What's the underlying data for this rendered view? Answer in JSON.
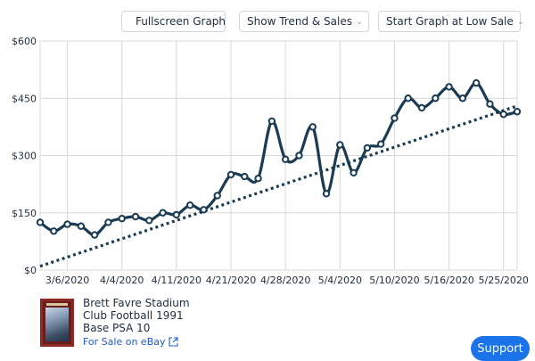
{
  "toolbar": {
    "fullscreen_label": "Fullscreen Graph",
    "trend_label": "Show Trend & Sales",
    "start_label": "Start Graph at Low Sale"
  },
  "icons": {
    "fullscreen": "expand-arrows-icon",
    "chevron": "chevron-down-icon",
    "external": "external-link-icon"
  },
  "colors": {
    "line": "#1b3b53",
    "trend": "#1b3b53",
    "grid": "#d8d8d8",
    "link": "#1e5bd6",
    "support_bg": "#1a73e8"
  },
  "chart_data": {
    "type": "line",
    "title": "",
    "xlabel": "",
    "ylabel": "",
    "ylim": [
      0,
      600
    ],
    "xlim": [
      0,
      35
    ],
    "yticks": [
      {
        "value": 0,
        "label": "$0"
      },
      {
        "value": 150,
        "label": "$150"
      },
      {
        "value": 300,
        "label": "$300"
      },
      {
        "value": 450,
        "label": "$450"
      },
      {
        "value": 600,
        "label": "$600"
      }
    ],
    "xticks": [
      {
        "value": 2,
        "label": "3/6/2020"
      },
      {
        "value": 6,
        "label": "4/4/2020"
      },
      {
        "value": 10,
        "label": "4/11/2020"
      },
      {
        "value": 14,
        "label": "4/21/2020"
      },
      {
        "value": 18,
        "label": "4/28/2020"
      },
      {
        "value": 22,
        "label": "5/4/2020"
      },
      {
        "value": 26,
        "label": "5/10/2020"
      },
      {
        "value": 30,
        "label": "5/16/2020"
      },
      {
        "value": 34,
        "label": "5/25/2020"
      }
    ],
    "series": [
      {
        "name": "Sales",
        "x": [
          0,
          1,
          2,
          3,
          4,
          5,
          6,
          7,
          8,
          9,
          10,
          11,
          12,
          13,
          14,
          15,
          16,
          17,
          18,
          19,
          20,
          21,
          22,
          23,
          24,
          25,
          26,
          27,
          28,
          29,
          30,
          31,
          32,
          33,
          34,
          35
        ],
        "values": [
          125,
          102,
          120,
          115,
          92,
          125,
          135,
          140,
          130,
          150,
          145,
          170,
          158,
          195,
          250,
          245,
          240,
          390,
          290,
          300,
          375,
          200,
          328,
          255,
          320,
          330,
          398,
          450,
          425,
          450,
          480,
          450,
          490,
          435,
          408,
          415
        ]
      }
    ],
    "trend": {
      "name": "Trend",
      "start": 10,
      "end": 430
    }
  },
  "listing": {
    "title_line1": "Brett Favre Stadium",
    "title_line2": "Club Football 1991",
    "title_line3": "Base PSA 10",
    "ebay_label": "For Sale on eBay"
  },
  "support_label": "Support"
}
